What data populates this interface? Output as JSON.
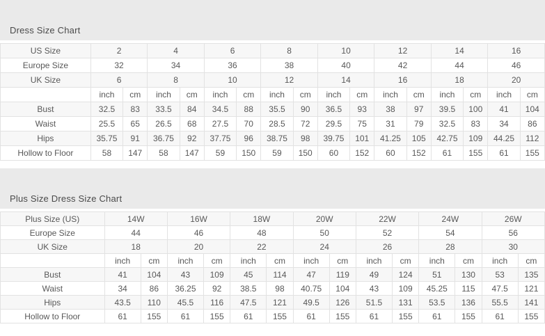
{
  "colors": {
    "band_background": "#eaeaea",
    "row_stripe": "#f7f7f7",
    "table_border": "#e2e2e2",
    "text": "#585858",
    "title_text": "#4a4a4a"
  },
  "regular_chart": {
    "title": "Dress Size Chart",
    "unit_labels": [
      "inch",
      "cm"
    ],
    "size_rows": [
      {
        "label": "US Size",
        "values": [
          "2",
          "4",
          "6",
          "8",
          "10",
          "12",
          "14",
          "16"
        ]
      },
      {
        "label": "Europe Size",
        "values": [
          "32",
          "34",
          "36",
          "38",
          "40",
          "42",
          "44",
          "46"
        ]
      },
      {
        "label": "UK Size",
        "values": [
          "6",
          "8",
          "10",
          "12",
          "14",
          "16",
          "18",
          "20"
        ]
      }
    ],
    "measurement_rows": [
      {
        "label": "Bust",
        "values": [
          "32.5",
          "83",
          "33.5",
          "84",
          "34.5",
          "88",
          "35.5",
          "90",
          "36.5",
          "93",
          "38",
          "97",
          "39.5",
          "100",
          "41",
          "104"
        ]
      },
      {
        "label": "Waist",
        "values": [
          "25.5",
          "65",
          "26.5",
          "68",
          "27.5",
          "70",
          "28.5",
          "72",
          "29.5",
          "75",
          "31",
          "79",
          "32.5",
          "83",
          "34",
          "86"
        ]
      },
      {
        "label": "Hips",
        "values": [
          "35.75",
          "91",
          "36.75",
          "92",
          "37.75",
          "96",
          "38.75",
          "98",
          "39.75",
          "101",
          "41.25",
          "105",
          "42.75",
          "109",
          "44.25",
          "112"
        ]
      },
      {
        "label": "Hollow to Floor",
        "values": [
          "58",
          "147",
          "58",
          "147",
          "59",
          "150",
          "59",
          "150",
          "60",
          "152",
          "60",
          "152",
          "61",
          "155",
          "61",
          "155"
        ]
      }
    ]
  },
  "plus_chart": {
    "title": "Plus Size Dress Size Chart",
    "unit_labels": [
      "inch",
      "cm"
    ],
    "size_rows": [
      {
        "label": "Plus Size (US)",
        "values": [
          "14W",
          "16W",
          "18W",
          "20W",
          "22W",
          "24W",
          "26W"
        ]
      },
      {
        "label": "Europe Size",
        "values": [
          "44",
          "46",
          "48",
          "50",
          "52",
          "54",
          "56"
        ]
      },
      {
        "label": "UK Size",
        "values": [
          "18",
          "20",
          "22",
          "24",
          "26",
          "28",
          "30"
        ]
      }
    ],
    "measurement_rows": [
      {
        "label": "Bust",
        "values": [
          "41",
          "104",
          "43",
          "109",
          "45",
          "114",
          "47",
          "119",
          "49",
          "124",
          "51",
          "130",
          "53",
          "135"
        ]
      },
      {
        "label": "Waist",
        "values": [
          "34",
          "86",
          "36.25",
          "92",
          "38.5",
          "98",
          "40.75",
          "104",
          "43",
          "109",
          "45.25",
          "115",
          "47.5",
          "121"
        ]
      },
      {
        "label": "Hips",
        "values": [
          "43.5",
          "110",
          "45.5",
          "116",
          "47.5",
          "121",
          "49.5",
          "126",
          "51.5",
          "131",
          "53.5",
          "136",
          "55.5",
          "141"
        ]
      },
      {
        "label": "Hollow to Floor",
        "values": [
          "61",
          "155",
          "61",
          "155",
          "61",
          "155",
          "61",
          "155",
          "61",
          "155",
          "61",
          "155",
          "61",
          "155"
        ]
      }
    ]
  },
  "chart_data": [
    {
      "type": "table",
      "title": "Dress Size Chart",
      "row_headers": [
        "US Size",
        "Europe Size",
        "UK Size",
        "Bust",
        "Waist",
        "Hips",
        "Hollow to Floor"
      ],
      "units_row": [
        "inch",
        "cm"
      ],
      "rows": {
        "US Size": [
          2,
          4,
          6,
          8,
          10,
          12,
          14,
          16
        ],
        "Europe Size": [
          32,
          34,
          36,
          38,
          40,
          42,
          44,
          46
        ],
        "UK Size": [
          6,
          8,
          10,
          12,
          14,
          16,
          18,
          20
        ],
        "Bust_inch": [
          32.5,
          33.5,
          34.5,
          35.5,
          36.5,
          38,
          39.5,
          41
        ],
        "Bust_cm": [
          83,
          84,
          88,
          90,
          93,
          97,
          100,
          104
        ],
        "Waist_inch": [
          25.5,
          26.5,
          27.5,
          28.5,
          29.5,
          31,
          32.5,
          34
        ],
        "Waist_cm": [
          65,
          68,
          70,
          72,
          75,
          79,
          83,
          86
        ],
        "Hips_inch": [
          35.75,
          36.75,
          37.75,
          38.75,
          39.75,
          41.25,
          42.75,
          44.25
        ],
        "Hips_cm": [
          91,
          92,
          96,
          98,
          101,
          105,
          109,
          112
        ],
        "Hollow_to_Floor_inch": [
          58,
          58,
          59,
          59,
          60,
          60,
          61,
          61
        ],
        "Hollow_to_Floor_cm": [
          147,
          147,
          150,
          150,
          152,
          152,
          155,
          155
        ]
      }
    },
    {
      "type": "table",
      "title": "Plus Size Dress Size Chart",
      "row_headers": [
        "Plus Size (US)",
        "Europe Size",
        "UK Size",
        "Bust",
        "Waist",
        "Hips",
        "Hollow to Floor"
      ],
      "units_row": [
        "inch",
        "cm"
      ],
      "rows": {
        "Plus Size (US)": [
          "14W",
          "16W",
          "18W",
          "20W",
          "22W",
          "24W",
          "26W"
        ],
        "Europe Size": [
          44,
          46,
          48,
          50,
          52,
          54,
          56
        ],
        "UK Size": [
          18,
          20,
          22,
          24,
          26,
          28,
          30
        ],
        "Bust_inch": [
          41,
          43,
          45,
          47,
          49,
          51,
          53
        ],
        "Bust_cm": [
          104,
          109,
          114,
          119,
          124,
          130,
          135
        ],
        "Waist_inch": [
          34,
          36.25,
          38.5,
          40.75,
          43,
          45.25,
          47.5
        ],
        "Waist_cm": [
          86,
          92,
          98,
          104,
          109,
          115,
          121
        ],
        "Hips_inch": [
          43.5,
          45.5,
          47.5,
          49.5,
          51.5,
          53.5,
          55.5
        ],
        "Hips_cm": [
          110,
          116,
          121,
          126,
          131,
          136,
          141
        ],
        "Hollow_to_Floor_inch": [
          61,
          61,
          61,
          61,
          61,
          61,
          61
        ],
        "Hollow_to_Floor_cm": [
          155,
          155,
          155,
          155,
          155,
          155,
          155
        ]
      }
    }
  ]
}
